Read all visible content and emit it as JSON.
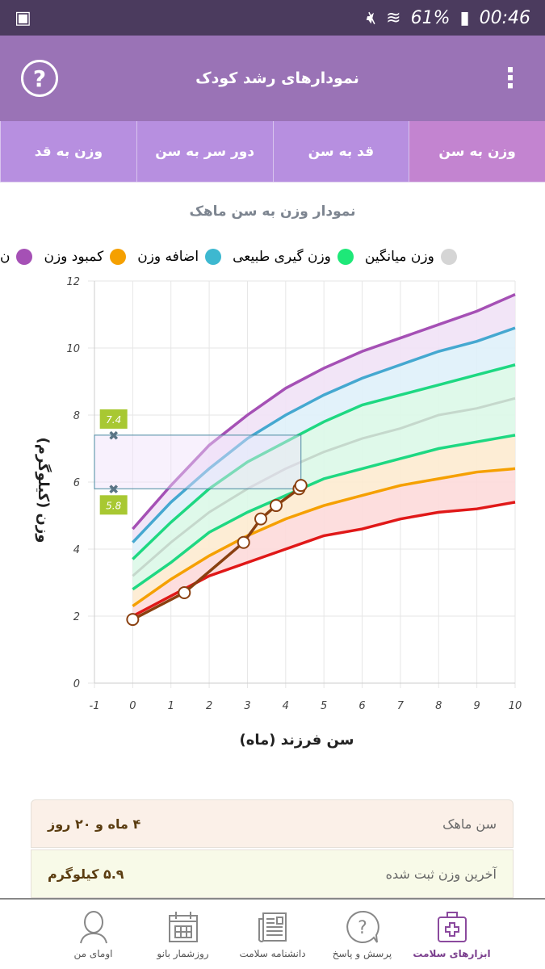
{
  "status": {
    "battery": "61%",
    "time": "00:46"
  },
  "header": {
    "title": "نمودارهای رشد کودک",
    "help_icon": "question-circle-icon",
    "menu_icon": "more-vertical-icon"
  },
  "tabs": [
    {
      "label": "وزن به سن",
      "active": true
    },
    {
      "label": "قد به سن"
    },
    {
      "label": "دور سر به سن"
    },
    {
      "label": "وزن به قد"
    }
  ],
  "chart_title": "نمودار وزن به سن ماهک",
  "legend": [
    {
      "label": "ن",
      "color": "#a550b5"
    },
    {
      "label": "کمبود وزن",
      "color": "#f5a000"
    },
    {
      "label": "اضافه وزن",
      "color": "#3db8d0"
    },
    {
      "label": "وزن گیری طبیعی",
      "color": "#1ee878"
    },
    {
      "label": "وزن میانگین",
      "color": "#d5d5d5"
    }
  ],
  "chart_data": {
    "type": "line",
    "xlabel": "سن فرزند (ماه)",
    "ylabel": "وزن (کیلوگرم)",
    "xlim": [
      -1,
      10
    ],
    "ylim": [
      0,
      12
    ],
    "xticks": [
      "-1",
      "0",
      "1",
      "2",
      "3",
      "4",
      "5",
      "6",
      "7",
      "8",
      "9",
      "10"
    ],
    "yticks": [
      "0",
      "2",
      "4",
      "6",
      "8",
      "10",
      "12"
    ],
    "grid": true,
    "x": [
      0,
      1,
      2,
      3,
      4,
      5,
      6,
      7,
      8,
      9,
      10
    ],
    "curves": [
      {
        "color": "#a550b5",
        "fill": "#f1e2f6",
        "values": [
          4.6,
          5.9,
          7.1,
          8.0,
          8.8,
          9.4,
          9.9,
          10.3,
          10.7,
          11.1,
          11.6
        ]
      },
      {
        "color": "#45a8d0",
        "fill": "#dff1fa",
        "values": [
          4.2,
          5.4,
          6.4,
          7.3,
          8.0,
          8.6,
          9.1,
          9.5,
          9.9,
          10.2,
          10.6
        ]
      },
      {
        "color": "#1ed882",
        "fill": "#dcf8e8",
        "values": [
          3.7,
          4.8,
          5.8,
          6.6,
          7.2,
          7.8,
          8.3,
          8.6,
          8.9,
          9.2,
          9.5
        ]
      },
      {
        "color": "#c5d8cc",
        "fill": "#dcf8e8",
        "values": [
          3.2,
          4.2,
          5.1,
          5.8,
          6.4,
          6.9,
          7.3,
          7.6,
          8.0,
          8.2,
          8.5
        ]
      },
      {
        "color": "#1ed882",
        "fill": "#fdebd0",
        "values": [
          2.8,
          3.6,
          4.5,
          5.1,
          5.6,
          6.1,
          6.4,
          6.7,
          7.0,
          7.2,
          7.4
        ]
      },
      {
        "color": "#f5a000",
        "fill": "#fddada",
        "values": [
          2.3,
          3.1,
          3.8,
          4.4,
          4.9,
          5.3,
          5.6,
          5.9,
          6.1,
          6.3,
          6.4
        ]
      },
      {
        "color": "#e01818",
        "values": [
          2.0,
          2.6,
          3.2,
          3.6,
          4.0,
          4.4,
          4.6,
          4.9,
          5.1,
          5.2,
          5.4
        ]
      }
    ],
    "child": {
      "color": "#8a4010",
      "points": [
        [
          0,
          1.9
        ],
        [
          1.35,
          2.7
        ],
        [
          2.9,
          4.2
        ],
        [
          3.35,
          4.9
        ],
        [
          3.75,
          5.3
        ],
        [
          4.35,
          5.8
        ],
        [
          4.4,
          5.9
        ]
      ]
    },
    "range": {
      "x": [
        -1,
        4.4
      ],
      "y": [
        5.8,
        7.4
      ],
      "labels": [
        "7.4",
        "5.8"
      ],
      "label_color": "#a8c832"
    }
  },
  "info": [
    {
      "key": "سن ماهک",
      "value": "۴ ماه و ۲۰ روز"
    },
    {
      "key": "آخرین وزن ثبت شده",
      "value": "۵.۹ کیلوگرم"
    }
  ],
  "nav": [
    {
      "label": "ابزارهای سلامت",
      "icon": "medical-kit-icon",
      "active": true
    },
    {
      "label": "پرسش و پاسخ",
      "icon": "question-bubble-icon"
    },
    {
      "label": "دانشنامه سلامت",
      "icon": "newspaper-icon"
    },
    {
      "label": "روزشمار بانو",
      "icon": "calendar-icon"
    },
    {
      "label": "اومای من",
      "icon": "user-avatar-icon"
    }
  ]
}
